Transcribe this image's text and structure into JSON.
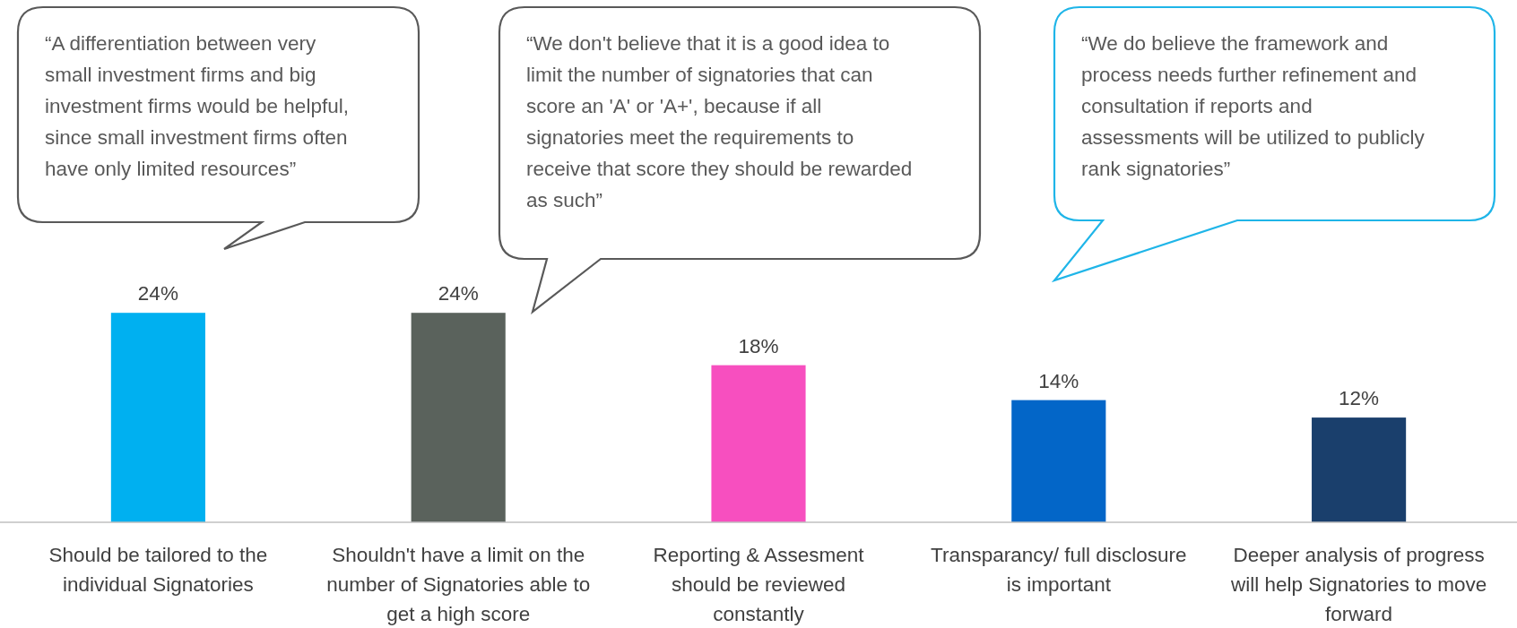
{
  "chart_data": {
    "type": "bar",
    "categories": [
      "Should be tailored to the individual Signatories",
      "Shouldn't have a limit on the number of Signatories able to get a high score",
      "Reporting & Assesment should be reviewed constantly",
      "Transparancy/ full disclosure is important",
      "Deeper analysis of progress will help Signatories to move forward"
    ],
    "values": [
      24,
      24,
      18,
      14,
      12
    ],
    "colors": [
      "#00b0f0",
      "#5a625c",
      "#f74fbf",
      "#0366c8",
      "#1a3f6c"
    ],
    "value_labels": [
      "24%",
      "24%",
      "18%",
      "14%",
      "12%"
    ],
    "annotations": [
      "“A differentiation between very small investment firms and big investment firms would be helpful, since small investment firms often have only limited resources”",
      "“We don't believe that it is a good idea to limit the number of signatories that can score an 'A' or 'A+', because if all signatories meet the requirements to receive that score they should be rewarded as such”",
      "“We do believe the framework and process needs further refinement and consultation if reports and assessments will be utilized to publicly rank signatories”"
    ]
  }
}
